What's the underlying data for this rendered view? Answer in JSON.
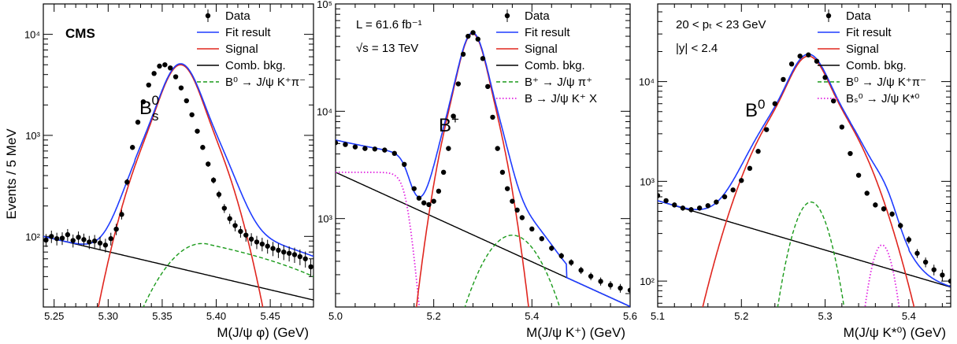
{
  "figure": {
    "ylabel": "Events / 5 MeV",
    "experiment": "CMS"
  },
  "chart_data": [
    {
      "type": "line",
      "id": "bs",
      "peak_label": {
        "base": "B",
        "sub": "s",
        "sup": "0"
      },
      "xlabel": "M(J/ψ φ) (GeV)",
      "xlim": [
        5.24,
        5.49
      ],
      "ylim": [
        20,
        20000
      ],
      "ylog": true,
      "x_ticks": [
        5.25,
        5.3,
        5.35,
        5.4,
        5.45
      ],
      "x_tick_labels": [
        "5.25",
        "5.30",
        "5.35",
        "5.40",
        "5.45"
      ],
      "y_ticks": [
        100,
        1000,
        10000
      ],
      "y_tick_labels": [
        "10²",
        "10³",
        "10⁴"
      ],
      "info": [],
      "legend": [
        {
          "label": "Data",
          "style": "data"
        },
        {
          "label": "Fit result",
          "style": "fit"
        },
        {
          "label": "Signal",
          "style": "signal"
        },
        {
          "label": "Comb. bkg.",
          "style": "comb"
        },
        {
          "label": "B⁰ → J/ψ K⁺π⁻",
          "style": "dashed-green"
        }
      ],
      "curves": {
        "signal": {
          "type": "double_gaussian",
          "mu": 5.367,
          "A1": 2950,
          "s1": 0.012,
          "A2": 2050,
          "s2": 0.025
        },
        "comb": {
          "type": "exponential",
          "x0": 5.24,
          "y0": 100,
          "slope": -5.8
        },
        "dashed-green": {
          "type": "bump_linear",
          "x0": 5.325,
          "amp": 85,
          "peak": 5.387,
          "width": 0.032,
          "x1": 5.395,
          "end": 40,
          "xend": 5.49
        }
      },
      "data_points": {
        "x": [
          5.2425,
          5.2475,
          5.2525,
          5.2575,
          5.2625,
          5.2675,
          5.2725,
          5.2775,
          5.2825,
          5.2875,
          5.2925,
          5.2975,
          5.3025,
          5.3075,
          5.3125,
          5.3175,
          5.3225,
          5.3275,
          5.3325,
          5.3375,
          5.3425,
          5.3475,
          5.3525,
          5.3575,
          5.3625,
          5.3675,
          5.3725,
          5.3775,
          5.3825,
          5.3875,
          5.3925,
          5.3975,
          5.4025,
          5.4075,
          5.4125,
          5.4175,
          5.4225,
          5.4275,
          5.4325,
          5.4375,
          5.4425,
          5.4475,
          5.4525,
          5.4575,
          5.4625,
          5.4675,
          5.4725,
          5.4775,
          5.4825,
          5.4875
        ],
        "y": [
          92,
          100,
          95,
          96,
          104,
          91,
          98,
          93,
          88,
          90,
          86,
          82,
          95,
          118,
          165,
          345,
          760,
          1350,
          2150,
          3150,
          4100,
          4850,
          5000,
          4650,
          3800,
          2950,
          2200,
          1600,
          1100,
          760,
          520,
          360,
          260,
          190,
          150,
          128,
          112,
          103,
          94,
          88,
          84,
          80,
          76,
          73,
          70,
          68,
          66,
          63,
          60,
          50
        ]
      }
    },
    {
      "type": "line",
      "id": "bplus",
      "peak_label": {
        "base": "B",
        "sub": "",
        "sup": "+"
      },
      "xlabel": "M(J/ψ K⁺) (GeV)",
      "xlim": [
        5.0,
        5.6
      ],
      "ylim": [
        150,
        100000
      ],
      "ylog": true,
      "x_ticks": [
        5.0,
        5.2,
        5.4,
        5.6
      ],
      "x_tick_labels": [
        "5.0",
        "5.2",
        "5.4",
        "5.6"
      ],
      "y_ticks": [
        1000,
        10000,
        100000
      ],
      "y_tick_labels": [
        "10³",
        "10⁴",
        "10⁵"
      ],
      "info": [
        "L = 61.6 fb⁻¹",
        "√s = 13 TeV"
      ],
      "legend": [
        {
          "label": "Data",
          "style": "data"
        },
        {
          "label": "Fit result",
          "style": "fit"
        },
        {
          "label": "Signal",
          "style": "signal"
        },
        {
          "label": "Comb. bkg.",
          "style": "comb"
        },
        {
          "label": "B⁺ → J/ψ π⁺",
          "style": "dashed-green"
        },
        {
          "label": "B → J/ψ K⁺ X",
          "style": "dotted-magenta"
        }
      ],
      "curves": {
        "signal": {
          "type": "double_gaussian",
          "mu": 5.279,
          "A1": 30000,
          "s1": 0.018,
          "A2": 23000,
          "s2": 0.036
        },
        "comb": {
          "type": "exponential",
          "x0": 5.0,
          "y0": 2700,
          "slope": -4.8
        },
        "dashed-green": {
          "type": "gaussian_window",
          "amp": 700,
          "mu": 5.36,
          "sigma": 0.055,
          "xmin": 5.23,
          "xmax": 5.47
        },
        "dotted-magenta": {
          "type": "plateau_edge",
          "amp": 2700,
          "edge": 5.145,
          "width": 0.009,
          "xmin": 5.0,
          "xmax": 5.2
        }
      },
      "data_points": {
        "x": [
          5.0,
          5.02,
          5.04,
          5.06,
          5.08,
          5.1,
          5.12,
          5.14,
          5.16,
          5.17,
          5.18,
          5.19,
          5.2,
          5.21,
          5.22,
          5.23,
          5.24,
          5.25,
          5.26,
          5.27,
          5.28,
          5.29,
          5.3,
          5.31,
          5.32,
          5.33,
          5.34,
          5.35,
          5.36,
          5.37,
          5.38,
          5.4,
          5.42,
          5.44,
          5.46,
          5.48,
          5.5,
          5.52,
          5.54,
          5.56,
          5.58,
          5.6
        ],
        "y": [
          5100,
          4900,
          4650,
          4500,
          4450,
          4350,
          4050,
          3200,
          1900,
          1550,
          1400,
          1350,
          1450,
          1800,
          2700,
          4500,
          9000,
          18000,
          34000,
          50000,
          54000,
          47000,
          31000,
          17000,
          8800,
          4500,
          2700,
          1900,
          1450,
          1200,
          1020,
          800,
          650,
          530,
          450,
          390,
          330,
          290,
          260,
          240,
          225,
          215
        ]
      }
    },
    {
      "type": "line",
      "id": "b0",
      "peak_label": {
        "base": "B",
        "sub": "",
        "sup": "0"
      },
      "xlabel": "M(J/ψ K*⁰) (GeV)",
      "xlim": [
        5.1,
        5.45
      ],
      "ylim": [
        55,
        60000
      ],
      "ylog": true,
      "x_ticks": [
        5.1,
        5.2,
        5.3,
        5.4
      ],
      "x_tick_labels": [
        "5.1",
        "5.2",
        "5.3",
        "5.4"
      ],
      "y_ticks": [
        100,
        1000,
        10000
      ],
      "y_tick_labels": [
        "10²",
        "10³",
        "10⁴"
      ],
      "info": [
        "20 < pₜ < 23 GeV",
        "|y| < 2.4"
      ],
      "legend": [
        {
          "label": "Data",
          "style": "data"
        },
        {
          "label": "Fit result",
          "style": "fit"
        },
        {
          "label": "Signal",
          "style": "signal"
        },
        {
          "label": "Comb. bkg.",
          "style": "comb"
        },
        {
          "label": "B⁰ → J/ψ K⁺π⁻",
          "style": "dashed-green"
        },
        {
          "label": "Bₛ⁰ → J/ψ K*⁰",
          "style": "dotted-magenta"
        }
      ],
      "curves": {
        "signal": {
          "type": "double_gaussian",
          "mu": 5.28,
          "A1": 10000,
          "s1": 0.016,
          "A2": 8000,
          "s2": 0.04
        },
        "comb": {
          "type": "exponential",
          "x0": 5.1,
          "y0": 640,
          "slope": -5.7
        },
        "dashed-green": {
          "type": "gaussian_window",
          "amp": 620,
          "mu": 5.283,
          "sigma": 0.018,
          "xmin": 5.16,
          "xmax": 5.33
        },
        "dotted-magenta": {
          "type": "gaussian_window",
          "amp": 230,
          "mu": 5.368,
          "sigma": 0.012,
          "xmin": 5.335,
          "xmax": 5.4
        }
      },
      "data_points": {
        "x": [
          5.1,
          5.11,
          5.12,
          5.13,
          5.14,
          5.15,
          5.16,
          5.17,
          5.18,
          5.19,
          5.2,
          5.21,
          5.22,
          5.23,
          5.24,
          5.25,
          5.26,
          5.27,
          5.28,
          5.29,
          5.3,
          5.31,
          5.32,
          5.33,
          5.34,
          5.35,
          5.36,
          5.37,
          5.38,
          5.39,
          5.4,
          5.41,
          5.42,
          5.43,
          5.44,
          5.45
        ],
        "y": [
          720,
          640,
          580,
          540,
          520,
          540,
          570,
          620,
          700,
          820,
          1020,
          1350,
          2000,
          3300,
          6000,
          10500,
          15000,
          18000,
          18500,
          16000,
          11000,
          6400,
          3500,
          1900,
          1150,
          760,
          580,
          530,
          470,
          360,
          260,
          190,
          155,
          130,
          115,
          100
        ]
      }
    }
  ]
}
